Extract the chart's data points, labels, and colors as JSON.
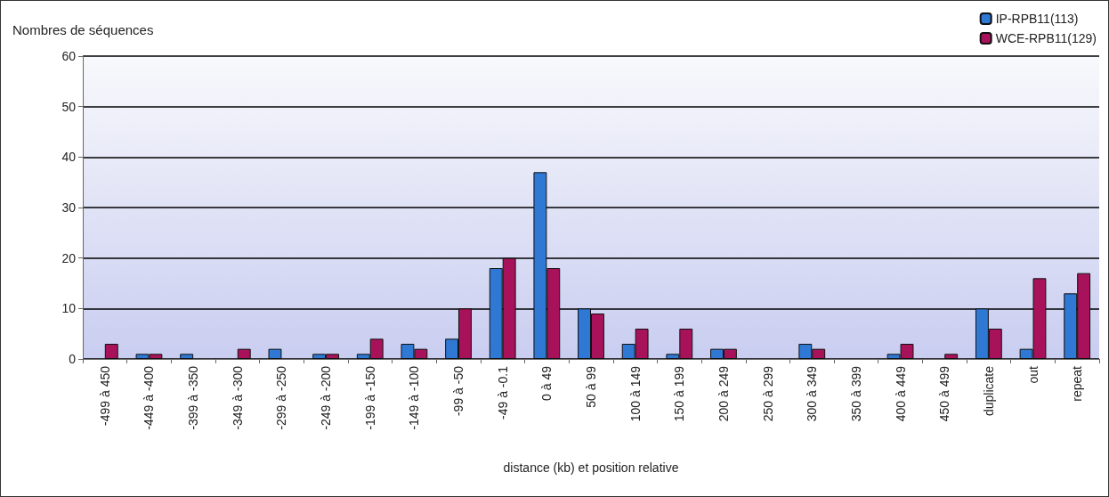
{
  "chart_data": {
    "type": "bar",
    "xlabel": "distance (kb) et position relative",
    "ylabel": "Nombres de séquences",
    "categories": [
      "-499 à 450",
      "-449 à -400",
      "-399 à -350",
      "-349 à -300",
      "-299 à -250",
      "-249 à -200",
      "-199 à -150",
      "-149 à -100",
      "-99 à -50",
      "-49 à -0.1",
      "0 à 49",
      "50 à 99",
      "100 à 149",
      "150 à 199",
      "200 à 249",
      "250 à 299",
      "300 à 349",
      "350 à 399",
      "400 à 449",
      "450 à 499",
      "duplicate",
      "out",
      "repeat"
    ],
    "series": [
      {
        "name": "IP-RPB11(113)",
        "color": "#2f78d4",
        "values": [
          0,
          1,
          1,
          0,
          2,
          1,
          1,
          3,
          4,
          18,
          37,
          10,
          3,
          1,
          2,
          0,
          3,
          0,
          1,
          0,
          10,
          2,
          13
        ]
      },
      {
        "name": "WCE-RPB11(129)",
        "color": "#a8125a",
        "values": [
          3,
          1,
          0,
          2,
          0,
          1,
          4,
          2,
          10,
          20,
          18,
          9,
          6,
          6,
          2,
          0,
          2,
          0,
          3,
          1,
          6,
          16,
          17
        ]
      }
    ],
    "ylim": [
      0,
      60
    ],
    "yticks": [
      0,
      10,
      20,
      30,
      40,
      50,
      60
    ],
    "grid": "y",
    "legend": "top right"
  }
}
